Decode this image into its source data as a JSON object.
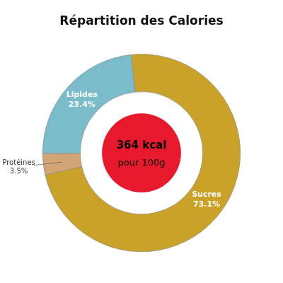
{
  "chart_data": {
    "type": "doughnut",
    "title": "Répartition des Calories",
    "categories": [
      "Sucres",
      "Protéines",
      "Lipides"
    ],
    "values": [
      73.1,
      3.5,
      23.4
    ],
    "value_labels": [
      "73.1%",
      "3.5%",
      "23.4%"
    ],
    "colors": [
      "#c9a227",
      "#d4a574",
      "#7bbcca"
    ],
    "data_labels": true,
    "legend": false,
    "center": {
      "texts": [
        "364 kcal",
        "pour 100g"
      ],
      "color": "#e8192c"
    }
  }
}
